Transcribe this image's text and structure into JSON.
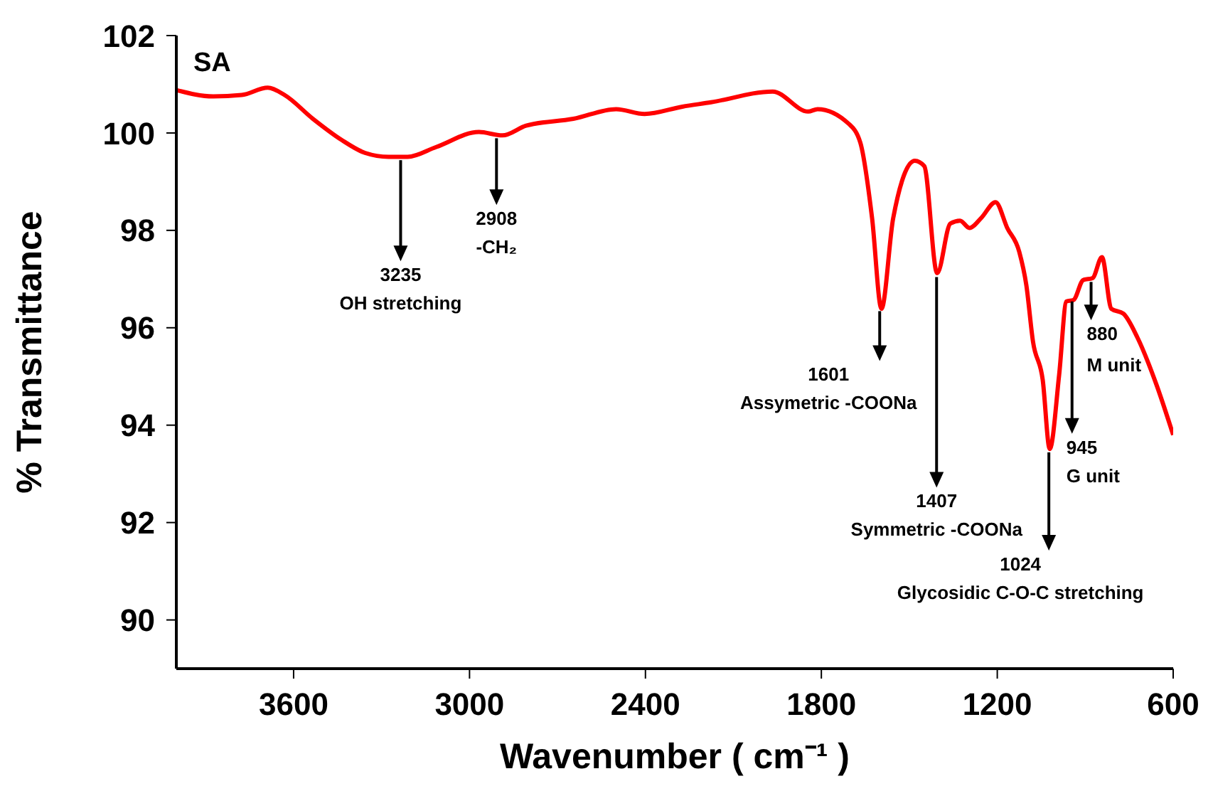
{
  "chart_data": {
    "type": "line",
    "title": "SA",
    "xlabel": "Wavenumber ( cm⁻¹ )",
    "ylabel": "% Transmittance",
    "xlim": [
      4000,
      600
    ],
    "xticks": [
      3600,
      3000,
      2400,
      1800,
      1200,
      600
    ],
    "ylim": [
      89,
      102
    ],
    "yticks": [
      90,
      92,
      94,
      96,
      98,
      100,
      102
    ],
    "grid": false,
    "legend": false,
    "marker": "none",
    "line_style": "solid",
    "series": [
      {
        "color": "#ff0000",
        "x": [
          4000,
          3874,
          3777,
          3688,
          3631,
          3534,
          3437,
          3356,
          3276,
          3211,
          3114,
          2968,
          2888,
          2807,
          2646,
          2500,
          2403,
          2274,
          2176,
          1966,
          1845,
          1813,
          1707,
          1667,
          1627,
          1595,
          1555,
          1481,
          1449,
          1405,
          1360,
          1327,
          1295,
          1254,
          1206,
          1166,
          1125,
          1101,
          1078,
          1045,
          1021,
          989,
          964,
          940,
          907,
          875,
          843,
          811,
          770,
          722,
          657,
          600
        ],
        "values": [
          100.88,
          100.75,
          100.78,
          100.93,
          100.78,
          100.29,
          99.86,
          99.59,
          99.51,
          99.51,
          99.71,
          100.02,
          99.95,
          100.15,
          100.29,
          100.49,
          100.39,
          100.54,
          100.63,
          100.85,
          100.44,
          100.49,
          100.19,
          99.8,
          98.25,
          96.39,
          98.25,
          99.43,
          99.32,
          97.12,
          98.14,
          98.2,
          98.05,
          98.26,
          98.58,
          98.05,
          97.56,
          96.88,
          95.71,
          94.93,
          93.51,
          95.03,
          96.54,
          96.57,
          96.98,
          97.02,
          97.45,
          96.39,
          96.29,
          95.8,
          94.83,
          93.8
        ]
      }
    ],
    "annotations": [
      {
        "text": "3235\nOH stretching",
        "x": 3235,
        "y": 99.5
      },
      {
        "text": "2908\n-CH₂",
        "x": 2908,
        "y": 99.95
      },
      {
        "text": "1601\nAssymetric -COONa",
        "x": 1601,
        "y": 96.4
      },
      {
        "text": "1407\nSymmetric -COONa",
        "x": 1407,
        "y": 97.1
      },
      {
        "text": "1024\nGlycosidic C-O-C stretching",
        "x": 1024,
        "y": 93.5
      },
      {
        "text": "945\nG unit",
        "x": 945,
        "y": 96.6
      },
      {
        "text": "880\nM unit",
        "x": 880,
        "y": 97.0
      }
    ]
  }
}
